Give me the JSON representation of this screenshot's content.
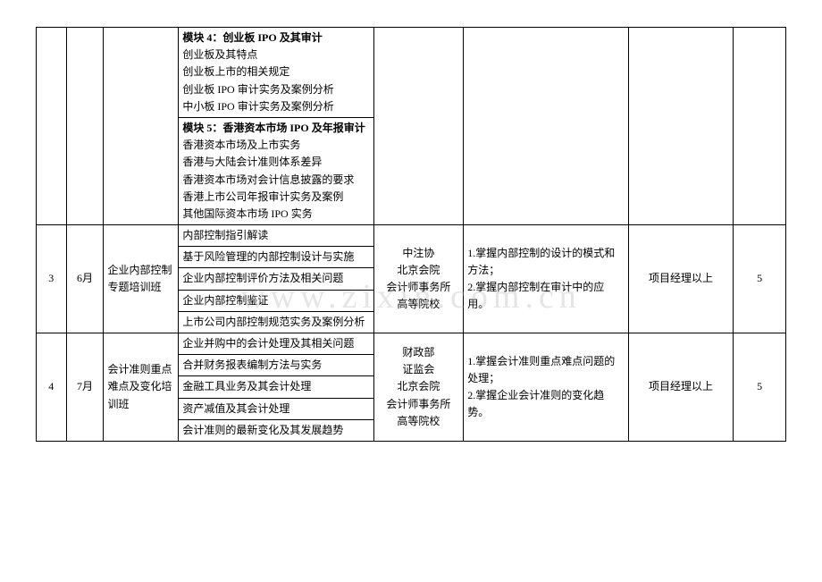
{
  "watermark": "www.zixin.com.cn",
  "rows_prev_a": [
    {
      "text": "模块 4：创业板 IPO 及其审计",
      "bold": true
    },
    {
      "text": "创业板及其特点",
      "bold": false
    },
    {
      "text": "创业板上市的相关规定",
      "bold": false
    },
    {
      "text": "创业板 IPO 审计实务及案例分析",
      "bold": false
    },
    {
      "text": "中小板 IPO 审计实务及案例分析",
      "bold": false
    }
  ],
  "rows_prev_b": [
    {
      "text": "模块 5：香港资本市场 IPO 及年报审计",
      "bold": true
    },
    {
      "text": "香港资本市场及上市实务",
      "bold": false
    },
    {
      "text": "香港与大陆会计准则体系差异",
      "bold": false
    },
    {
      "text": "香港资本市场对会计信息披露的要求",
      "bold": false
    },
    {
      "text": "香港上市公司年报审计实务及案例",
      "bold": false
    },
    {
      "text": "其他国际资本市场 IPO 实务",
      "bold": false
    }
  ],
  "group3": {
    "idx": "3",
    "month": "6月",
    "name": "企业内部控制专题培训班",
    "contents": [
      "内部控制指引解读",
      "基于风险管理的内部控制设计与实施",
      "企业内部控制评价方法及相关问题",
      "企业内部控制鉴证",
      "上市公司内部控制规范实务及案例分析"
    ],
    "teacher": "中注协\n北京会院\n会计师事务所\n高等院校",
    "goal": "1.掌握内部控制的设计的模式和方法；\n2.掌握内部控制在审计中的应用。",
    "target": "项目经理以上",
    "days": "5"
  },
  "group4": {
    "idx": "4",
    "month": "7月",
    "name": "会计准则重点难点及变化培训班",
    "contents": [
      "企业并购中的会计处理及其相关问题",
      "合并财务报表编制方法与实务",
      "金融工具业务及其会计处理",
      "资产减值及其会计处理",
      "会计准则的最新变化及其发展趋势"
    ],
    "teacher": "财政部\n证监会\n北京会院\n会计师事务所\n高等院校",
    "goal": "1.掌握会计准则重点难点问题的处理；\n2.掌握企业会计准则的变化趋势。",
    "target": "项目经理以上",
    "days": "5"
  }
}
